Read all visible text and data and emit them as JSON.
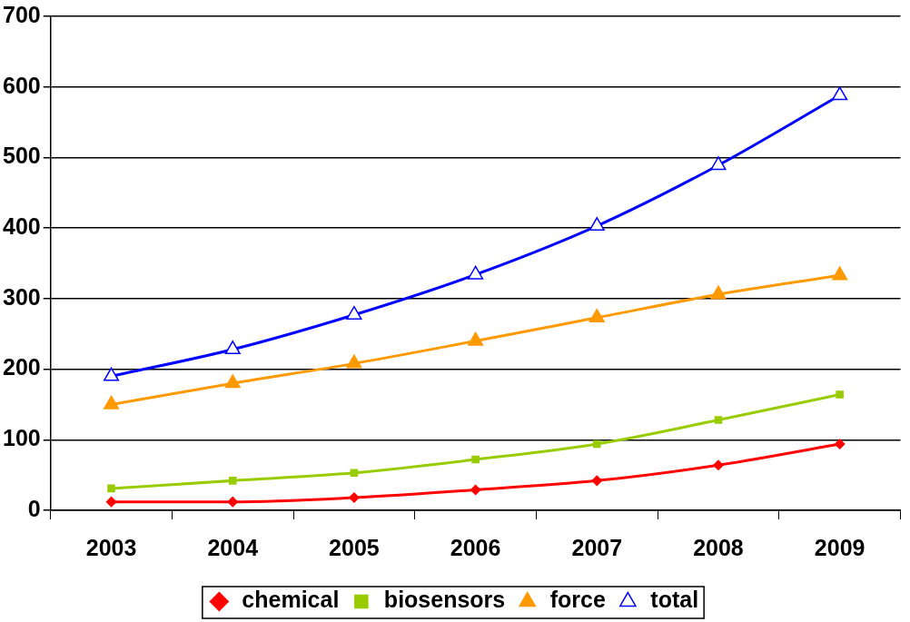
{
  "chart_data": {
    "type": "line",
    "categories": [
      "2003",
      "2004",
      "2005",
      "2006",
      "2007",
      "2008",
      "2009"
    ],
    "series": [
      {
        "name": "chemical",
        "color": "#ff0000",
        "marker": "diamond",
        "values": [
          12,
          12,
          18,
          29,
          42,
          64,
          94
        ]
      },
      {
        "name": "biosensors",
        "color": "#99cc00",
        "marker": "square",
        "values": [
          31,
          42,
          53,
          72,
          94,
          128,
          164
        ]
      },
      {
        "name": "force",
        "color": "#ff9900",
        "marker": "triangle",
        "values": [
          150,
          180,
          208,
          240,
          273,
          306,
          333
        ]
      },
      {
        "name": "total",
        "color": "#0000ff",
        "marker": "triangle",
        "values": [
          190,
          228,
          277,
          334,
          403,
          489,
          588
        ]
      }
    ],
    "ylim": [
      0,
      700
    ],
    "yticks": [
      0,
      100,
      200,
      300,
      400,
      500,
      600,
      700
    ],
    "grid": "y",
    "legend": "bottom",
    "line_style": "solid"
  }
}
